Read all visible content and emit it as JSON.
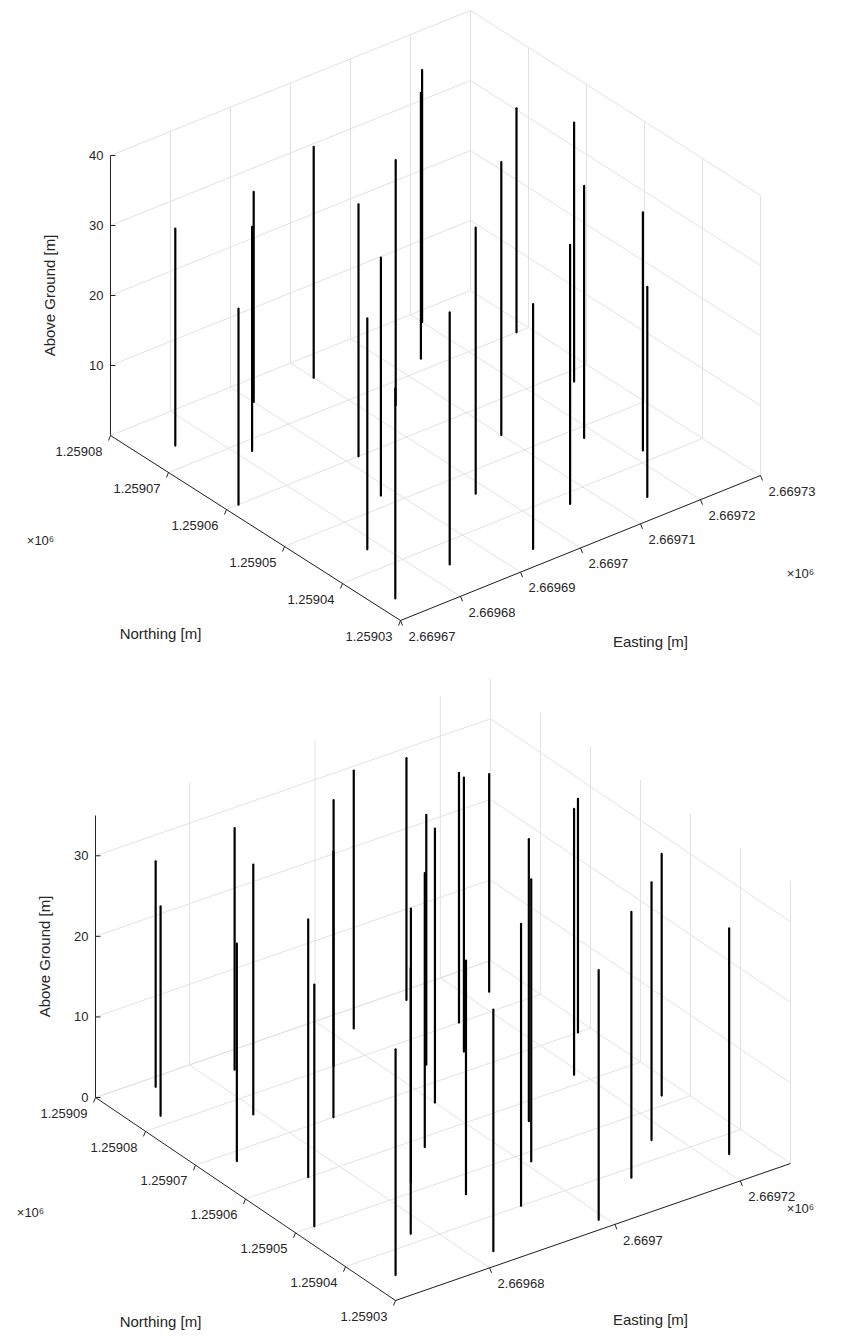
{
  "chart_data": [
    {
      "type": "tree3d",
      "x_label": "Easting [m]",
      "y_label": "Northing [m]",
      "z_label": "Above Ground [m]",
      "x_exponent": "×10⁶",
      "y_exponent": "×10⁶",
      "xlim": [
        2669670,
        2669730
      ],
      "xticks": [
        {
          "value": 2669670,
          "label": "2.66967"
        },
        {
          "value": 2669680,
          "label": "2.66968"
        },
        {
          "value": 2669690,
          "label": "2.66969"
        },
        {
          "value": 2669700,
          "label": "2.6697"
        },
        {
          "value": 2669710,
          "label": "2.66971"
        },
        {
          "value": 2669720,
          "label": "2.66972"
        },
        {
          "value": 2669730,
          "label": "2.66973"
        }
      ],
      "ylim": [
        1259030,
        1259080
      ],
      "yticks": [
        {
          "value": 1259030,
          "label": "1.25903"
        },
        {
          "value": 1259040,
          "label": "1.25904"
        },
        {
          "value": 1259050,
          "label": "1.25905"
        },
        {
          "value": 1259060,
          "label": "1.25906"
        },
        {
          "value": 1259070,
          "label": "1.25907"
        },
        {
          "value": 1259080,
          "label": "1.25908"
        }
      ],
      "zlim": [
        0,
        40
      ],
      "zticks": [
        10,
        20,
        30,
        40
      ],
      "grid": true,
      "color": "#000000",
      "trees": [
        {
          "x": 2669673,
          "y": 1259034,
          "height": 30
        },
        {
          "x": 2669678,
          "y": 1259044,
          "height": 33
        },
        {
          "x": 2669672,
          "y": 1259060,
          "height": 28
        },
        {
          "x": 2669675,
          "y": 1259074,
          "height": 31
        },
        {
          "x": 2669684,
          "y": 1259036,
          "height": 36
        },
        {
          "x": 2669688,
          "y": 1259052,
          "height": 34
        },
        {
          "x": 2669682,
          "y": 1259068,
          "height": 32
        },
        {
          "x": 2669695,
          "y": 1259033,
          "height": 35
        },
        {
          "x": 2669698,
          "y": 1259046,
          "height": 38
        },
        {
          "x": 2669692,
          "y": 1259060,
          "height": 36
        },
        {
          "x": 2669700,
          "y": 1259076,
          "height": 33
        },
        {
          "x": 2669706,
          "y": 1259038,
          "height": 37
        },
        {
          "x": 2669710,
          "y": 1259054,
          "height": 39
        },
        {
          "x": 2669704,
          "y": 1259066,
          "height": 35
        },
        {
          "x": 2669715,
          "y": 1259034,
          "height": 30
        },
        {
          "x": 2669718,
          "y": 1259048,
          "height": 36
        },
        {
          "x": 2669714,
          "y": 1259072,
          "height": 38
        },
        {
          "x": 2669722,
          "y": 1259042,
          "height": 34
        },
        {
          "x": 2669726,
          "y": 1259058,
          "height": 37
        },
        {
          "x": 2669728,
          "y": 1259070,
          "height": 32
        },
        {
          "x": 2669720,
          "y": 1259078,
          "height": 36
        },
        {
          "x": 2669690,
          "y": 1259076,
          "height": 30
        }
      ]
    },
    {
      "type": "tree3d",
      "x_label": "Easting [m]",
      "y_label": "Northing [m]",
      "z_label": "Above Ground [m]",
      "x_exponent": "×10⁶",
      "y_exponent": "×10⁶",
      "xlim": [
        2669665,
        2669728
      ],
      "xticks": [
        {
          "value": 2669680,
          "label": "2.66968"
        },
        {
          "value": 2669700,
          "label": "2.6697"
        },
        {
          "value": 2669720,
          "label": "2.66972"
        }
      ],
      "ylim": [
        1259030,
        1259090
      ],
      "yticks": [
        {
          "value": 1259030,
          "label": "1.25903"
        },
        {
          "value": 1259040,
          "label": "1.25904"
        },
        {
          "value": 1259050,
          "label": "1.25905"
        },
        {
          "value": 1259060,
          "label": "1.25906"
        },
        {
          "value": 1259070,
          "label": "1.25907"
        },
        {
          "value": 1259080,
          "label": "1.25908"
        },
        {
          "value": 1259090,
          "label": "1.25909"
        }
      ],
      "zlim": [
        0,
        35
      ],
      "zticks": [
        0,
        10,
        20,
        30
      ],
      "grid": true,
      "color": "#000000",
      "trees": [
        {
          "x": 2669669,
          "y": 1259035,
          "height": 28
        },
        {
          "x": 2669668,
          "y": 1259050,
          "height": 30
        },
        {
          "x": 2669670,
          "y": 1259068,
          "height": 27
        },
        {
          "x": 2669669,
          "y": 1259082,
          "height": 26
        },
        {
          "x": 2669677,
          "y": 1259042,
          "height": 33
        },
        {
          "x": 2669675,
          "y": 1259060,
          "height": 32
        },
        {
          "x": 2669679,
          "y": 1259076,
          "height": 31
        },
        {
          "x": 2669683,
          "y": 1259033,
          "height": 30
        },
        {
          "x": 2669685,
          "y": 1259052,
          "height": 34
        },
        {
          "x": 2669687,
          "y": 1259070,
          "height": 33
        },
        {
          "x": 2669684,
          "y": 1259086,
          "height": 30
        },
        {
          "x": 2669693,
          "y": 1259040,
          "height": 35
        },
        {
          "x": 2669692,
          "y": 1259058,
          "height": 34
        },
        {
          "x": 2669695,
          "y": 1259080,
          "height": 33
        },
        {
          "x": 2669699,
          "y": 1259032,
          "height": 31
        },
        {
          "x": 2669701,
          "y": 1259048,
          "height": 35
        },
        {
          "x": 2669700,
          "y": 1259066,
          "height": 34
        },
        {
          "x": 2669703,
          "y": 1259086,
          "height": 32
        },
        {
          "x": 2669709,
          "y": 1259038,
          "height": 33
        },
        {
          "x": 2669707,
          "y": 1259056,
          "height": 35
        },
        {
          "x": 2669711,
          "y": 1259074,
          "height": 34
        },
        {
          "x": 2669713,
          "y": 1259088,
          "height": 30
        },
        {
          "x": 2669717,
          "y": 1259044,
          "height": 32
        },
        {
          "x": 2669719,
          "y": 1259062,
          "height": 33
        },
        {
          "x": 2669715,
          "y": 1259080,
          "height": 31
        },
        {
          "x": 2669723,
          "y": 1259036,
          "height": 28
        },
        {
          "x": 2669725,
          "y": 1259052,
          "height": 30
        },
        {
          "x": 2669726,
          "y": 1259070,
          "height": 29
        },
        {
          "x": 2669723,
          "y": 1259084,
          "height": 27
        },
        {
          "x": 2669689,
          "y": 1259046,
          "height": 29
        },
        {
          "x": 2669705,
          "y": 1259074,
          "height": 31
        },
        {
          "x": 2669673,
          "y": 1259088,
          "height": 28
        }
      ]
    }
  ]
}
